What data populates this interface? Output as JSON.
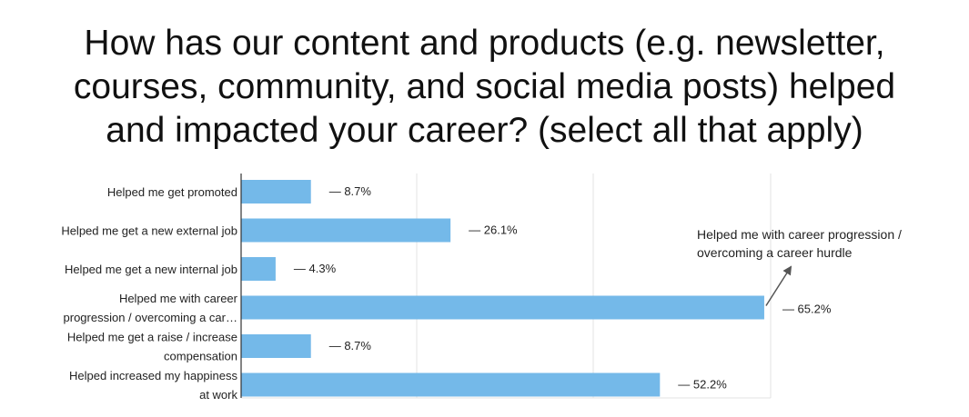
{
  "chart_data": {
    "type": "bar",
    "orientation": "horizontal",
    "title_lines": [
      "How has our content and products (e.g. newsletter,",
      "courses, community, and social media posts) helped",
      "and impacted your career? (select all that apply)"
    ],
    "categories": [
      [
        "Helped me get promoted"
      ],
      [
        "Helped me get a new external job"
      ],
      [
        "Helped me get a new internal job"
      ],
      [
        "Helped me with career",
        "progression / overcoming a car…"
      ],
      [
        "Helped me get a raise / increase",
        "compensation"
      ],
      [
        "Helped increased my happiness",
        "at work"
      ]
    ],
    "values": [
      8.7,
      26.1,
      4.3,
      65.2,
      8.7,
      52.2
    ],
    "data_labels": [
      "— 8.7%",
      "— 26.1%",
      "— 4.3%",
      "— 65.2%",
      "— 8.7%",
      "— 52.2%"
    ],
    "bar_color": "#74b9e9",
    "xlim": [
      0,
      66
    ],
    "grid": true,
    "annotation": {
      "lines": [
        "Helped me with career progression /",
        "overcoming a career hurdle"
      ],
      "target_index": 3
    }
  }
}
